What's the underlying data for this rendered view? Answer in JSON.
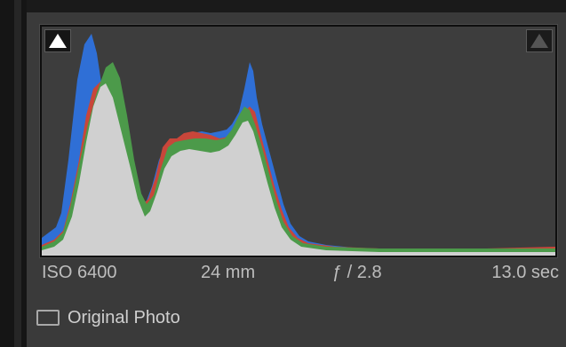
{
  "histogram": {
    "shadow_clip_icon": "triangle-up-icon",
    "highlight_clip_icon": "triangle-up-icon",
    "channel_colors": {
      "blue": "#2f6fd6",
      "red": "#c8463a",
      "green": "#4c9a4a",
      "luminance": "#d0d0d0"
    }
  },
  "metadata": {
    "iso": "ISO 6400",
    "focal_length": "24 mm",
    "aperture": "ƒ / 2.8",
    "shutter": "13.0 sec"
  },
  "original_photo": {
    "label": "Original Photo",
    "checked": false
  }
}
